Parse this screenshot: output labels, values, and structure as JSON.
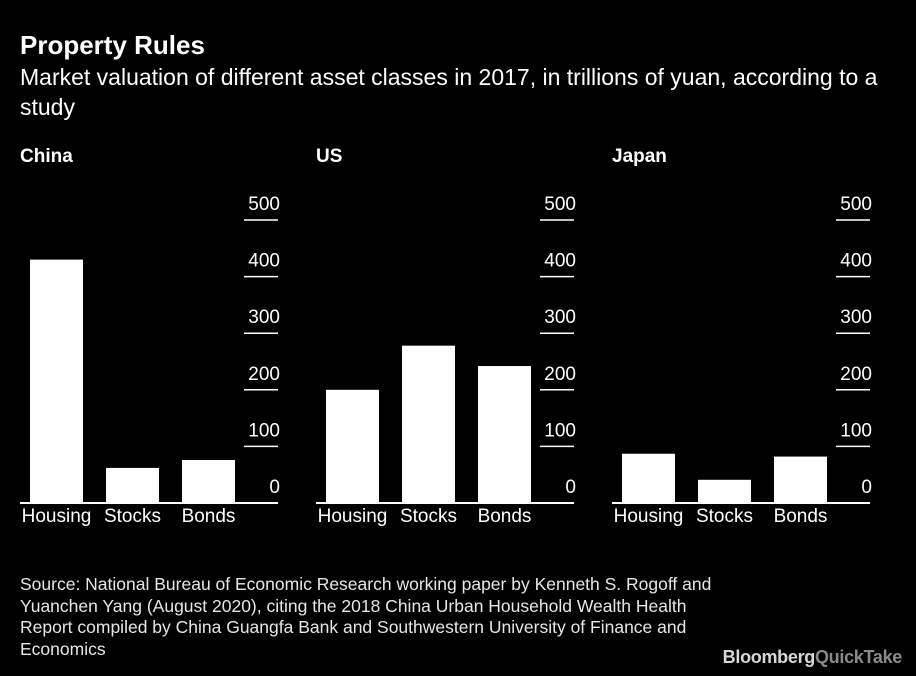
{
  "title": "Property Rules",
  "subtitle": "Market valuation of different asset classes in 2017, in trillions of yuan, according to a study",
  "chart_data": [
    {
      "type": "bar",
      "title": "China",
      "categories": [
        "Housing",
        "Stocks",
        "Bonds"
      ],
      "values": [
        430,
        62,
        76
      ],
      "ylim": [
        0,
        500
      ],
      "yticks": [
        0,
        100,
        200,
        300,
        400,
        500
      ],
      "xlabel": "",
      "ylabel": ""
    },
    {
      "type": "bar",
      "title": "US",
      "categories": [
        "Housing",
        "Stocks",
        "Bonds"
      ],
      "values": [
        200,
        278,
        242
      ],
      "ylim": [
        0,
        500
      ],
      "yticks": [
        0,
        100,
        200,
        300,
        400,
        500
      ],
      "xlabel": "",
      "ylabel": ""
    },
    {
      "type": "bar",
      "title": "Japan",
      "categories": [
        "Housing",
        "Stocks",
        "Bonds"
      ],
      "values": [
        87,
        41,
        82
      ],
      "ylim": [
        0,
        500
      ],
      "yticks": [
        0,
        100,
        200,
        300,
        400,
        500
      ],
      "xlabel": "",
      "ylabel": ""
    }
  ],
  "source": "Source: National Bureau of Economic Research working paper by Kenneth S. Rogoff and Yuanchen Yang (August 2020), citing the 2018 China Urban Household Wealth Health Report compiled by China Guangfa Bank and Southwestern University of Finance and Economics",
  "logo": {
    "brand": "Bloomberg",
    "accent": "QuickTake"
  },
  "colors": {
    "background": "#000000",
    "bar": "#ffffff",
    "text": "#ffffff"
  }
}
